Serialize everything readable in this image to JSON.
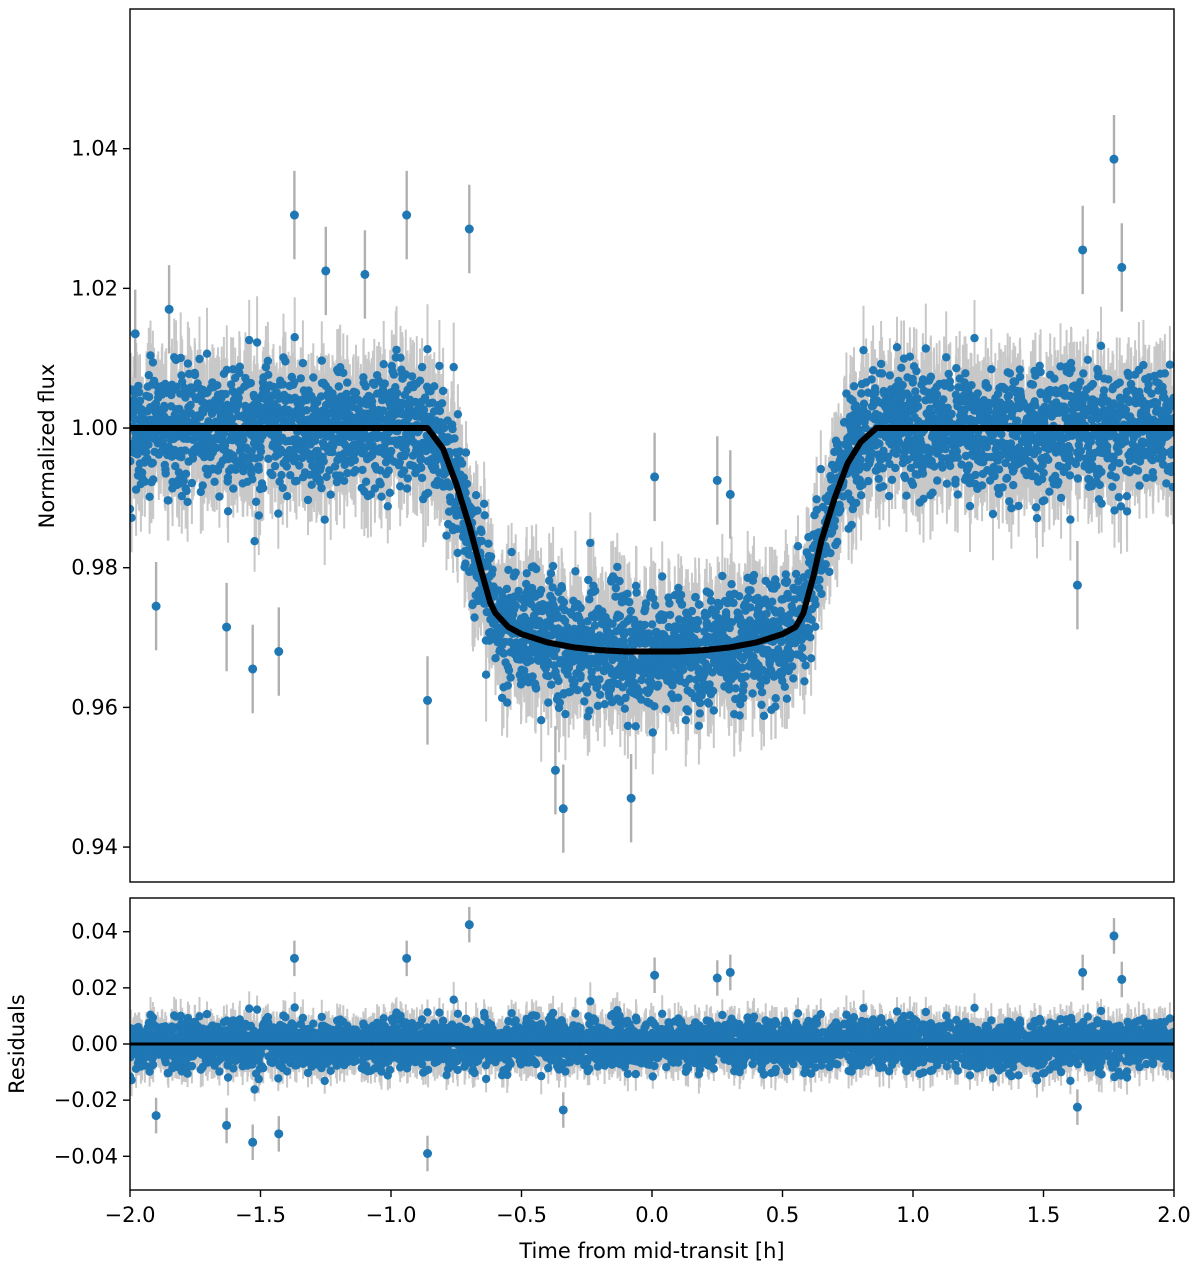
{
  "chart_data": [
    {
      "type": "scatter",
      "panel": "main",
      "title": "",
      "xlabel": "",
      "ylabel": "Normalized flux",
      "xlim": [
        -2.0,
        2.0
      ],
      "ylim": [
        0.935,
        1.06
      ],
      "yticks": [
        0.94,
        0.96,
        0.98,
        1.0,
        1.02,
        1.04
      ],
      "ytick_labels": [
        "0.94",
        "0.96",
        "0.98",
        "1.00",
        "1.02",
        "1.04"
      ],
      "grid": false,
      "colors": {
        "points": "#1f77b4",
        "errorbars": "#b0b0b0",
        "model": "#000000"
      },
      "model": {
        "x": [
          -2.0,
          -0.86,
          -0.8,
          -0.75,
          -0.7,
          -0.65,
          -0.62,
          -0.6,
          -0.55,
          -0.5,
          -0.4,
          -0.3,
          -0.2,
          -0.1,
          0.0,
          0.1,
          0.2,
          0.3,
          0.4,
          0.5,
          0.55,
          0.58,
          0.62,
          0.65,
          0.7,
          0.75,
          0.8,
          0.86,
          2.0
        ],
        "y": [
          1.0,
          1.0,
          0.997,
          0.992,
          0.986,
          0.979,
          0.975,
          0.9735,
          0.9715,
          0.9705,
          0.9693,
          0.9686,
          0.9682,
          0.968,
          0.968,
          0.968,
          0.9682,
          0.9686,
          0.9693,
          0.9705,
          0.9715,
          0.9735,
          0.979,
          0.984,
          0.99,
          0.995,
          0.998,
          1.0,
          1.0
        ]
      },
      "outliers": {
        "x": [
          -1.9,
          -1.63,
          -1.53,
          -1.43,
          -0.86,
          -0.7,
          -1.37,
          -0.94,
          -1.25,
          -1.1,
          -0.34,
          -0.08,
          1.77,
          1.65,
          1.63,
          1.8,
          -0.37,
          0.01,
          0.3,
          0.25,
          -1.98,
          -1.85
        ],
        "y": [
          0.9745,
          0.9715,
          0.9655,
          0.968,
          0.961,
          1.0285,
          1.0305,
          1.0305,
          1.0225,
          1.022,
          0.9455,
          0.947,
          1.0385,
          1.0255,
          0.9775,
          1.023,
          0.951,
          0.993,
          0.9905,
          0.9925,
          1.0135,
          1.017
        ]
      },
      "scatter_noise_sd": 0.0042,
      "n_points": 4200
    },
    {
      "type": "scatter",
      "panel": "residuals",
      "title": "",
      "xlabel": "Time from mid-transit [h]",
      "ylabel": "Residuals",
      "xlim": [
        -2.0,
        2.0
      ],
      "ylim": [
        -0.052,
        0.052
      ],
      "xticks": [
        -2.0,
        -1.5,
        -1.0,
        -0.5,
        0.0,
        0.5,
        1.0,
        1.5,
        2.0
      ],
      "xtick_labels": [
        "−2.0",
        "−1.5",
        "−1.0",
        "−0.5",
        "0.0",
        "0.5",
        "1.0",
        "1.5",
        "2.0"
      ],
      "yticks": [
        -0.04,
        -0.02,
        0.0,
        0.02,
        0.04
      ],
      "ytick_labels": [
        "−0.04",
        "−0.02",
        "0.00",
        "0.02",
        "0.04"
      ],
      "grid": false,
      "zero_line": 0.0,
      "outliers": {
        "x": [
          -0.7,
          -1.37,
          -0.94,
          -1.63,
          -1.53,
          -1.43,
          -0.86,
          1.77,
          1.65,
          1.8,
          1.63,
          -1.9,
          0.3,
          0.25,
          0.01,
          -0.34
        ],
        "y": [
          0.0425,
          0.0305,
          0.0305,
          -0.029,
          -0.035,
          -0.032,
          -0.039,
          0.0385,
          0.0255,
          0.023,
          -0.0225,
          -0.0255,
          0.0255,
          0.0235,
          0.0245,
          -0.0235
        ]
      },
      "scatter_noise_sd": 0.0045,
      "n_points": 4200
    }
  ]
}
